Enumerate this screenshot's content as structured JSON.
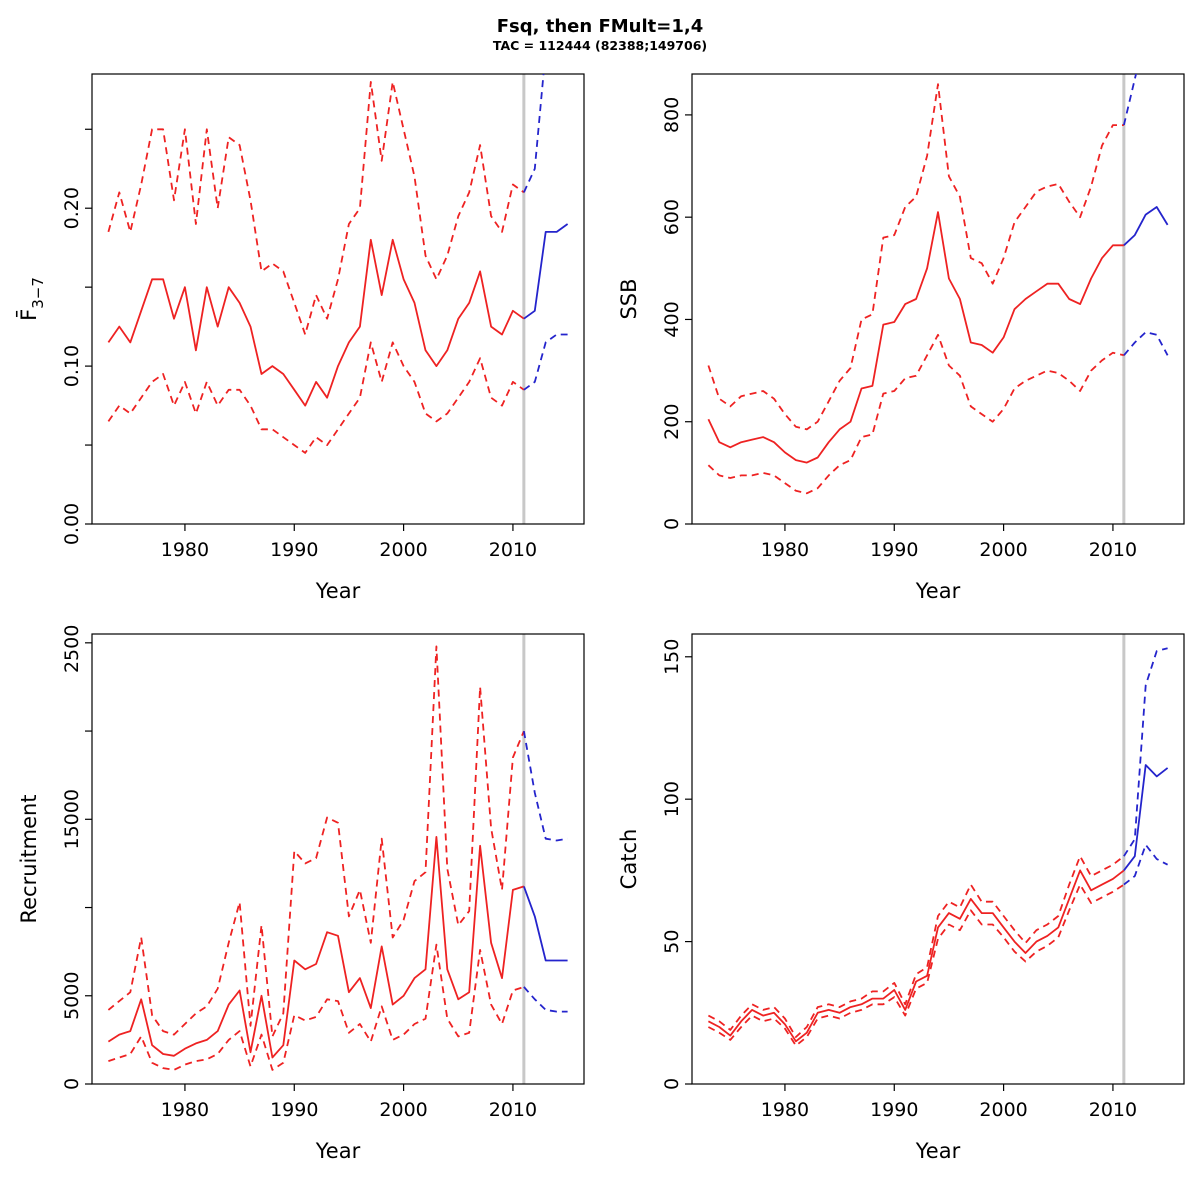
{
  "header": {
    "title": "Fsq, then FMult=1,4",
    "subtitle": "TAC = 112444 (82388;149706)"
  },
  "colors": {
    "history": "#ee2222",
    "projection": "#2424cc",
    "divider": "#c8c8c8",
    "axis": "#000000"
  },
  "chart_data": [
    {
      "type": "line",
      "name": "fbar",
      "ylabel": "F̄",
      "ylabel_sub": "3−7",
      "xlabel": "Year",
      "xlim": [
        1971.5,
        2016.5
      ],
      "ylim": [
        0,
        0.285
      ],
      "divider_year": 2011,
      "years": {
        "history_start": 1973,
        "projection_start": 2011,
        "end": 2015
      },
      "xticks": {
        "values": [
          1980,
          1990,
          2000,
          2010
        ],
        "labels": [
          "1980",
          "1990",
          "2000",
          "2010"
        ]
      },
      "yticks": {
        "values": [
          0,
          0.05,
          0.1,
          0.15,
          0.2,
          0.25
        ],
        "labels": [
          "0.00",
          "",
          "0.10",
          "",
          "0.20",
          ""
        ]
      },
      "series": [
        {
          "name": "history-median",
          "role": "history",
          "style": "solid",
          "values": [
            0.115,
            0.125,
            0.115,
            0.135,
            0.155,
            0.155,
            0.13,
            0.15,
            0.11,
            0.15,
            0.125,
            0.15,
            0.14,
            0.125,
            0.095,
            0.1,
            0.095,
            0.085,
            0.075,
            0.09,
            0.08,
            0.1,
            0.115,
            0.125,
            0.18,
            0.145,
            0.18,
            0.155,
            0.14,
            0.11,
            0.1,
            0.11,
            0.13,
            0.14,
            0.16,
            0.125,
            0.12,
            0.135,
            0.13
          ]
        },
        {
          "name": "history-upper",
          "role": "history",
          "style": "dashed",
          "values": [
            0.185,
            0.21,
            0.185,
            0.215,
            0.25,
            0.25,
            0.205,
            0.25,
            0.19,
            0.25,
            0.2,
            0.245,
            0.24,
            0.205,
            0.16,
            0.165,
            0.16,
            0.14,
            0.12,
            0.145,
            0.13,
            0.155,
            0.19,
            0.2,
            0.28,
            0.23,
            0.28,
            0.25,
            0.22,
            0.17,
            0.155,
            0.17,
            0.195,
            0.21,
            0.24,
            0.195,
            0.185,
            0.215,
            0.21
          ]
        },
        {
          "name": "history-lower",
          "role": "history",
          "style": "dashed",
          "values": [
            0.065,
            0.075,
            0.07,
            0.08,
            0.09,
            0.095,
            0.075,
            0.09,
            0.07,
            0.09,
            0.075,
            0.085,
            0.085,
            0.075,
            0.06,
            0.06,
            0.055,
            0.05,
            0.045,
            0.055,
            0.05,
            0.06,
            0.07,
            0.08,
            0.115,
            0.09,
            0.115,
            0.1,
            0.09,
            0.07,
            0.065,
            0.07,
            0.08,
            0.09,
            0.105,
            0.08,
            0.075,
            0.09,
            0.085
          ]
        },
        {
          "name": "projection-median",
          "role": "projection",
          "style": "solid",
          "values": [
            0.13,
            0.135,
            0.185,
            0.185,
            0.19
          ]
        },
        {
          "name": "projection-upper",
          "role": "projection",
          "style": "dashed",
          "values": [
            0.21,
            0.225,
            0.3,
            0.31,
            0.31
          ]
        },
        {
          "name": "projection-lower",
          "role": "projection",
          "style": "dashed",
          "values": [
            0.085,
            0.09,
            0.115,
            0.12,
            0.12
          ]
        }
      ]
    },
    {
      "type": "line",
      "name": "ssb",
      "ylabel": "SSB",
      "xlabel": "Year",
      "xlim": [
        1971.5,
        2016.5
      ],
      "ylim": [
        0,
        880
      ],
      "divider_year": 2011,
      "years": {
        "history_start": 1973,
        "projection_start": 2011,
        "end": 2015
      },
      "xticks": {
        "values": [
          1980,
          1990,
          2000,
          2010
        ],
        "labels": [
          "1980",
          "1990",
          "2000",
          "2010"
        ]
      },
      "yticks": {
        "values": [
          0,
          200,
          400,
          600,
          800
        ],
        "labels": [
          "0",
          "200",
          "400",
          "600",
          "800"
        ]
      },
      "series": [
        {
          "name": "history-median",
          "role": "history",
          "style": "solid",
          "values": [
            205,
            160,
            150,
            160,
            165,
            170,
            160,
            140,
            125,
            120,
            130,
            160,
            185,
            200,
            265,
            270,
            390,
            395,
            430,
            440,
            500,
            610,
            480,
            440,
            355,
            350,
            335,
            365,
            420,
            440,
            455,
            470,
            470,
            440,
            430,
            480,
            520,
            545,
            545
          ]
        },
        {
          "name": "history-upper",
          "role": "history",
          "style": "dashed",
          "values": [
            310,
            245,
            230,
            250,
            255,
            260,
            245,
            215,
            190,
            185,
            200,
            240,
            280,
            305,
            400,
            410,
            560,
            565,
            620,
            640,
            720,
            860,
            680,
            640,
            520,
            510,
            470,
            520,
            590,
            620,
            650,
            660,
            665,
            630,
            600,
            660,
            740,
            780,
            780
          ]
        },
        {
          "name": "history-lower",
          "role": "history",
          "style": "dashed",
          "values": [
            115,
            95,
            90,
            95,
            95,
            100,
            95,
            80,
            65,
            60,
            70,
            95,
            115,
            125,
            170,
            175,
            255,
            260,
            285,
            290,
            330,
            370,
            310,
            290,
            230,
            215,
            200,
            225,
            265,
            280,
            290,
            300,
            295,
            280,
            260,
            300,
            320,
            335,
            330
          ]
        },
        {
          "name": "projection-median",
          "role": "projection",
          "style": "solid",
          "values": [
            545,
            565,
            605,
            620,
            585
          ]
        },
        {
          "name": "projection-upper",
          "role": "projection",
          "style": "dashed",
          "values": [
            780,
            870,
            960,
            980,
            950
          ]
        },
        {
          "name": "projection-lower",
          "role": "projection",
          "style": "dashed",
          "values": [
            330,
            355,
            375,
            370,
            330
          ]
        }
      ]
    },
    {
      "type": "line",
      "name": "recruitment",
      "ylabel": "Recruitment",
      "xlabel": "Year",
      "xlim": [
        1971.5,
        2016.5
      ],
      "ylim": [
        0,
        25500
      ],
      "divider_year": 2011,
      "years": {
        "history_start": 1973,
        "projection_start": 2011,
        "end": 2015
      },
      "xticks": {
        "values": [
          1980,
          1990,
          2000,
          2010
        ],
        "labels": [
          "1980",
          "1990",
          "2000",
          "2010"
        ]
      },
      "yticks": {
        "values": [
          0,
          5000,
          10000,
          15000,
          20000,
          25000
        ],
        "labels": [
          "0",
          "5000",
          "",
          "15000",
          "",
          "25000"
        ]
      },
      "series": [
        {
          "name": "history-median",
          "role": "history",
          "style": "solid",
          "values": [
            2400,
            2800,
            3000,
            4800,
            2200,
            1700,
            1600,
            2000,
            2300,
            2500,
            3000,
            4500,
            5300,
            1800,
            5000,
            1500,
            2200,
            7000,
            6500,
            6800,
            8600,
            8400,
            5200,
            6000,
            4300,
            7800,
            4500,
            5000,
            6000,
            6500,
            14000,
            6500,
            4800,
            5200,
            13500,
            8000,
            6000,
            11000,
            11200
          ]
        },
        {
          "name": "history-upper",
          "role": "history",
          "style": "dashed",
          "values": [
            4200,
            4700,
            5200,
            8300,
            3900,
            3000,
            2800,
            3400,
            4000,
            4400,
            5400,
            8000,
            10300,
            3300,
            9000,
            2700,
            4000,
            13200,
            12500,
            12800,
            15100,
            14800,
            9500,
            11000,
            8000,
            13900,
            8300,
            9300,
            11500,
            12000,
            24800,
            12200,
            9000,
            9800,
            22500,
            14500,
            11000,
            18500,
            20000
          ]
        },
        {
          "name": "history-lower",
          "role": "history",
          "style": "dashed",
          "values": [
            1300,
            1500,
            1700,
            2700,
            1200,
            900,
            800,
            1100,
            1300,
            1400,
            1700,
            2500,
            3000,
            1000,
            2800,
            800,
            1200,
            3900,
            3600,
            3800,
            4800,
            4700,
            2900,
            3400,
            2400,
            4400,
            2500,
            2800,
            3400,
            3700,
            7900,
            3700,
            2700,
            2900,
            7600,
            4500,
            3400,
            5300,
            5500
          ]
        },
        {
          "name": "projection-median",
          "role": "projection",
          "style": "solid",
          "values": [
            11200,
            9500,
            7000,
            7000,
            7000
          ]
        },
        {
          "name": "projection-upper",
          "role": "projection",
          "style": "dashed",
          "values": [
            20000,
            16500,
            13900,
            13800,
            13900
          ]
        },
        {
          "name": "projection-lower",
          "role": "projection",
          "style": "dashed",
          "values": [
            5500,
            4800,
            4200,
            4100,
            4100
          ]
        }
      ]
    },
    {
      "type": "line",
      "name": "catch",
      "ylabel": "Catch",
      "xlabel": "Year",
      "xlim": [
        1971.5,
        2016.5
      ],
      "ylim": [
        0,
        158
      ],
      "divider_year": 2011,
      "years": {
        "history_start": 1973,
        "projection_start": 2011,
        "end": 2015
      },
      "xticks": {
        "values": [
          1980,
          1990,
          2000,
          2010
        ],
        "labels": [
          "1980",
          "1990",
          "2000",
          "2010"
        ]
      },
      "yticks": {
        "values": [
          0,
          50,
          100,
          150
        ],
        "labels": [
          "0",
          "50",
          "100",
          "150"
        ]
      },
      "series": [
        {
          "name": "history-median",
          "role": "history",
          "style": "solid",
          "values": [
            22,
            20,
            17,
            22,
            26,
            24,
            25,
            21,
            15,
            18,
            25,
            26,
            25,
            27,
            28,
            30,
            30,
            33,
            26,
            36,
            38,
            55,
            60,
            58,
            65,
            60,
            60,
            55,
            50,
            46,
            50,
            52,
            55,
            65,
            75,
            68,
            70,
            72,
            75
          ]
        },
        {
          "name": "history-upper",
          "role": "history",
          "style": "dashed",
          "values": [
            24,
            22,
            19,
            24,
            28,
            26,
            27,
            23,
            16.5,
            20,
            27,
            28,
            27,
            29,
            30,
            32.5,
            32.5,
            35.5,
            28,
            38.5,
            41,
            59,
            64,
            62,
            70,
            64,
            64,
            59,
            54,
            49.5,
            54,
            56,
            59,
            70,
            80,
            73,
            75,
            77,
            80
          ]
        },
        {
          "name": "history-lower",
          "role": "history",
          "style": "dashed",
          "values": [
            20,
            18,
            15.5,
            20,
            24,
            22,
            23,
            19.5,
            13.5,
            16.5,
            23,
            24,
            23,
            25,
            26,
            28,
            28,
            30.5,
            24,
            33.5,
            35.5,
            51,
            56,
            54,
            61,
            56,
            56,
            51.5,
            46.5,
            43,
            46.5,
            48.5,
            51.5,
            61,
            70,
            63.5,
            65.5,
            67.5,
            70
          ]
        },
        {
          "name": "projection-median",
          "role": "projection",
          "style": "solid",
          "values": [
            75,
            80,
            112,
            108,
            111
          ]
        },
        {
          "name": "projection-upper",
          "role": "projection",
          "style": "dashed",
          "values": [
            80,
            86,
            140,
            152,
            153
          ]
        },
        {
          "name": "projection-lower",
          "role": "projection",
          "style": "dashed",
          "values": [
            70,
            73,
            84,
            79,
            77
          ]
        }
      ]
    }
  ]
}
